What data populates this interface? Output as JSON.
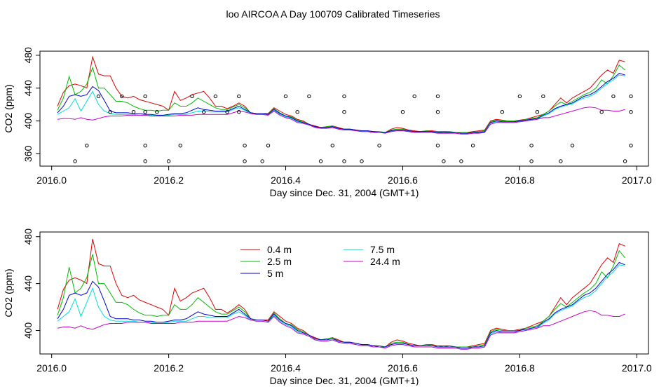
{
  "title": "loo AIRCOA A  Day 100709  Calibrated Timeseries",
  "chart_data": [
    {
      "type": "line",
      "xlabel": "Day since Dec. 31, 2004 (GMT+1)",
      "ylabel": "CO2 (ppm)",
      "xlim": [
        2015.98,
        2017.02
      ],
      "ylim": [
        345,
        485
      ],
      "xticks": [
        2016.0,
        2016.2,
        2016.4,
        2016.6,
        2016.8,
        2017.0
      ],
      "xtick_labels": [
        "2016.0",
        "2016.2",
        "2016.4",
        "2016.6",
        "2016.8",
        "2017.0"
      ],
      "yticks": [
        360,
        400,
        440,
        480
      ],
      "ytick_labels": [
        "360",
        "400",
        "440",
        "480"
      ],
      "x": [
        2016.01,
        2016.02,
        2016.03,
        2016.04,
        2016.05,
        2016.06,
        2016.07,
        2016.08,
        2016.09,
        2016.1,
        2016.11,
        2016.12,
        2016.13,
        2016.14,
        2016.15,
        2016.16,
        2016.17,
        2016.18,
        2016.19,
        2016.2,
        2016.21,
        2016.22,
        2016.23,
        2016.24,
        2016.25,
        2016.26,
        2016.27,
        2016.28,
        2016.29,
        2016.3,
        2016.31,
        2016.32,
        2016.33,
        2016.34,
        2016.35,
        2016.36,
        2016.37,
        2016.38,
        2016.39,
        2016.4,
        2016.41,
        2016.42,
        2016.43,
        2016.44,
        2016.45,
        2016.46,
        2016.47,
        2016.48,
        2016.49,
        2016.5,
        2016.51,
        2016.52,
        2016.53,
        2016.54,
        2016.55,
        2016.56,
        2016.57,
        2016.58,
        2016.59,
        2016.6,
        2016.61,
        2016.62,
        2016.63,
        2016.64,
        2016.65,
        2016.66,
        2016.67,
        2016.68,
        2016.69,
        2016.7,
        2016.71,
        2016.72,
        2016.73,
        2016.74,
        2016.75,
        2016.76,
        2016.77,
        2016.78,
        2016.79,
        2016.8,
        2016.81,
        2016.82,
        2016.83,
        2016.84,
        2016.85,
        2016.86,
        2016.87,
        2016.88,
        2016.89,
        2016.9,
        2016.91,
        2016.92,
        2016.93,
        2016.94,
        2016.95,
        2016.96,
        2016.97,
        2016.98
      ],
      "series": [
        {
          "color": "#dd0000",
          "values": [
            418,
            435,
            443,
            445,
            443,
            440,
            478,
            457,
            455,
            455,
            440,
            430,
            428,
            430,
            426,
            424,
            422,
            420,
            418,
            413,
            436,
            425,
            428,
            432,
            434,
            436,
            428,
            418,
            418,
            415,
            418,
            422,
            418,
            410,
            409,
            409,
            409,
            416,
            412,
            408,
            406,
            402,
            400,
            396,
            394,
            392,
            393,
            394,
            392,
            390,
            390,
            389,
            388,
            388,
            387,
            387,
            386,
            390,
            392,
            391,
            389,
            388,
            387,
            388,
            388,
            387,
            387,
            387,
            386,
            386,
            386,
            387,
            388,
            389,
            400,
            402,
            401,
            400,
            400,
            401,
            402,
            404,
            406,
            408,
            412,
            420,
            428,
            422,
            428,
            432,
            436,
            440,
            448,
            456,
            462,
            458,
            474,
            472
          ]
        },
        {
          "color": "#00bb00",
          "values": [
            413,
            428,
            454,
            432,
            436,
            445,
            465,
            440,
            440,
            432,
            424,
            424,
            422,
            418,
            415,
            413,
            413,
            412,
            413,
            413,
            422,
            418,
            418,
            422,
            428,
            424,
            420,
            416,
            414,
            414,
            417,
            420,
            416,
            410,
            409,
            409,
            408,
            415,
            410,
            406,
            405,
            401,
            399,
            396,
            393,
            392,
            393,
            394,
            391,
            390,
            390,
            389,
            388,
            388,
            387,
            387,
            386,
            389,
            390,
            390,
            388,
            387,
            387,
            388,
            387,
            387,
            386,
            387,
            386,
            386,
            386,
            386,
            387,
            388,
            399,
            401,
            400,
            400,
            400,
            400,
            402,
            403,
            404,
            408,
            412,
            418,
            423,
            420,
            424,
            428,
            432,
            435,
            440,
            450,
            445,
            455,
            468,
            462
          ]
        },
        {
          "color": "#0000cc",
          "values": [
            410,
            418,
            430,
            432,
            430,
            432,
            442,
            437,
            425,
            412,
            410,
            410,
            410,
            409,
            409,
            408,
            408,
            407,
            407,
            408,
            409,
            409,
            410,
            413,
            416,
            414,
            413,
            412,
            412,
            412,
            415,
            418,
            414,
            410,
            409,
            409,
            408,
            414,
            409,
            406,
            404,
            400,
            398,
            396,
            393,
            392,
            392,
            393,
            391,
            390,
            390,
            389,
            388,
            388,
            387,
            386,
            386,
            388,
            389,
            389,
            388,
            387,
            387,
            387,
            387,
            386,
            386,
            386,
            386,
            385,
            385,
            386,
            386,
            387,
            398,
            400,
            399,
            399,
            399,
            400,
            401,
            402,
            403,
            407,
            410,
            415,
            418,
            420,
            422,
            426,
            430,
            432,
            436,
            442,
            448,
            452,
            458,
            456
          ]
        },
        {
          "color": "#00dddd",
          "values": [
            408,
            412,
            416,
            427,
            412,
            424,
            436,
            420,
            412,
            409,
            408,
            408,
            408,
            408,
            407,
            407,
            407,
            406,
            406,
            407,
            408,
            408,
            408,
            410,
            412,
            412,
            411,
            411,
            411,
            411,
            414,
            416,
            413,
            409,
            408,
            408,
            407,
            413,
            408,
            405,
            403,
            399,
            397,
            395,
            392,
            391,
            391,
            392,
            390,
            389,
            389,
            388,
            387,
            387,
            386,
            386,
            385,
            387,
            388,
            388,
            387,
            386,
            386,
            386,
            386,
            385,
            385,
            385,
            385,
            384,
            384,
            385,
            385,
            386,
            397,
            399,
            398,
            398,
            398,
            399,
            400,
            401,
            402,
            406,
            409,
            414,
            417,
            419,
            421,
            425,
            428,
            430,
            434,
            440,
            446,
            450,
            456,
            455
          ]
        },
        {
          "color": "#cc00cc",
          "values": [
            402,
            403,
            403,
            402,
            404,
            402,
            401,
            403,
            405,
            406,
            406,
            406,
            407,
            407,
            407,
            407,
            406,
            406,
            406,
            406,
            406,
            407,
            407,
            407,
            408,
            408,
            408,
            408,
            408,
            408,
            410,
            412,
            411,
            409,
            408,
            408,
            407,
            412,
            407,
            404,
            402,
            398,
            397,
            395,
            392,
            391,
            391,
            392,
            390,
            389,
            389,
            388,
            387,
            387,
            386,
            386,
            385,
            387,
            388,
            388,
            387,
            386,
            386,
            386,
            386,
            385,
            385,
            385,
            385,
            384,
            384,
            385,
            385,
            386,
            396,
            398,
            398,
            398,
            398,
            399,
            400,
            401,
            402,
            404,
            404,
            406,
            408,
            410,
            412,
            414,
            416,
            417,
            416,
            413,
            413,
            412,
            412,
            414
          ]
        }
      ],
      "markers": {
        "x": [
          2016.04,
          2016.06,
          2016.08,
          2016.1,
          2016.12,
          2016.14,
          2016.16,
          2016.16,
          2016.16,
          2016.16,
          2016.18,
          2016.2,
          2016.22,
          2016.24,
          2016.26,
          2016.28,
          2016.3,
          2016.32,
          2016.32,
          2016.33,
          2016.33,
          2016.36,
          2016.37,
          2016.4,
          2016.42,
          2016.44,
          2016.46,
          2016.48,
          2016.5,
          2016.5,
          2016.5,
          2016.53,
          2016.56,
          2016.6,
          2016.62,
          2016.66,
          2016.66,
          2016.66,
          2016.67,
          2016.7,
          2016.72,
          2016.77,
          2016.8,
          2016.82,
          2016.82,
          2016.83,
          2016.84,
          2016.87,
          2016.89,
          2016.94,
          2016.96,
          2016.98,
          2016.99,
          2016.99,
          2016.99
        ],
        "y": [
          351,
          370,
          430,
          411,
          430,
          411,
          351,
          370,
          411,
          430,
          411,
          351,
          370,
          430,
          411,
          430,
          411,
          430,
          411,
          370,
          351,
          351,
          370,
          430,
          411,
          430,
          351,
          370,
          411,
          430,
          351,
          351,
          370,
          411,
          430,
          370,
          411,
          430,
          351,
          351,
          370,
          411,
          430,
          351,
          370,
          411,
          430,
          351,
          370,
          411,
          430,
          351,
          370,
          411,
          430
        ]
      }
    },
    {
      "type": "line",
      "xlabel": "Day since Dec. 31, 2004 (GMT+1)",
      "ylabel": "CO2 (ppm)",
      "xlim": [
        2015.98,
        2017.02
      ],
      "ylim": [
        380,
        484
      ],
      "xticks": [
        2016.0,
        2016.2,
        2016.4,
        2016.6,
        2016.8,
        2017.0
      ],
      "xtick_labels": [
        "2016.0",
        "2016.2",
        "2016.4",
        "2016.6",
        "2016.8",
        "2017.0"
      ],
      "yticks": [
        400,
        440,
        480
      ],
      "ytick_labels": [
        "400",
        "440",
        "480"
      ],
      "legend": [
        "0.4 m",
        "2.5 m",
        "5 m",
        "7.5 m",
        "24.4 m"
      ],
      "legend_colors": [
        "#dd0000",
        "#00bb00",
        "#0000cc",
        "#00dddd",
        "#cc00cc"
      ],
      "legend_position": "top-center"
    }
  ]
}
